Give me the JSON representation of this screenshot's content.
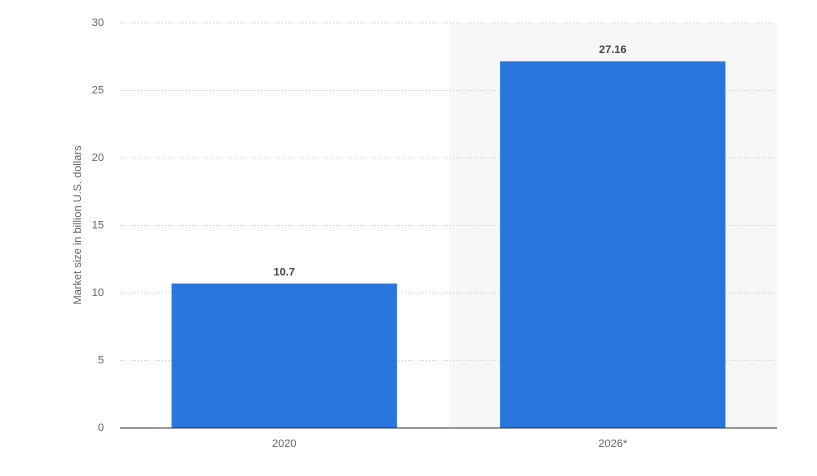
{
  "chart_data": {
    "type": "bar",
    "y_label": "Market size in billion U.S. dollars",
    "categories": [
      "2020",
      "2026*"
    ],
    "values": [
      10.7,
      27.16
    ],
    "color": "#2876dd",
    "ylim": [
      0,
      30
    ],
    "yticks": [
      0,
      5,
      10,
      15,
      20,
      25,
      30
    ],
    "grid": true
  }
}
